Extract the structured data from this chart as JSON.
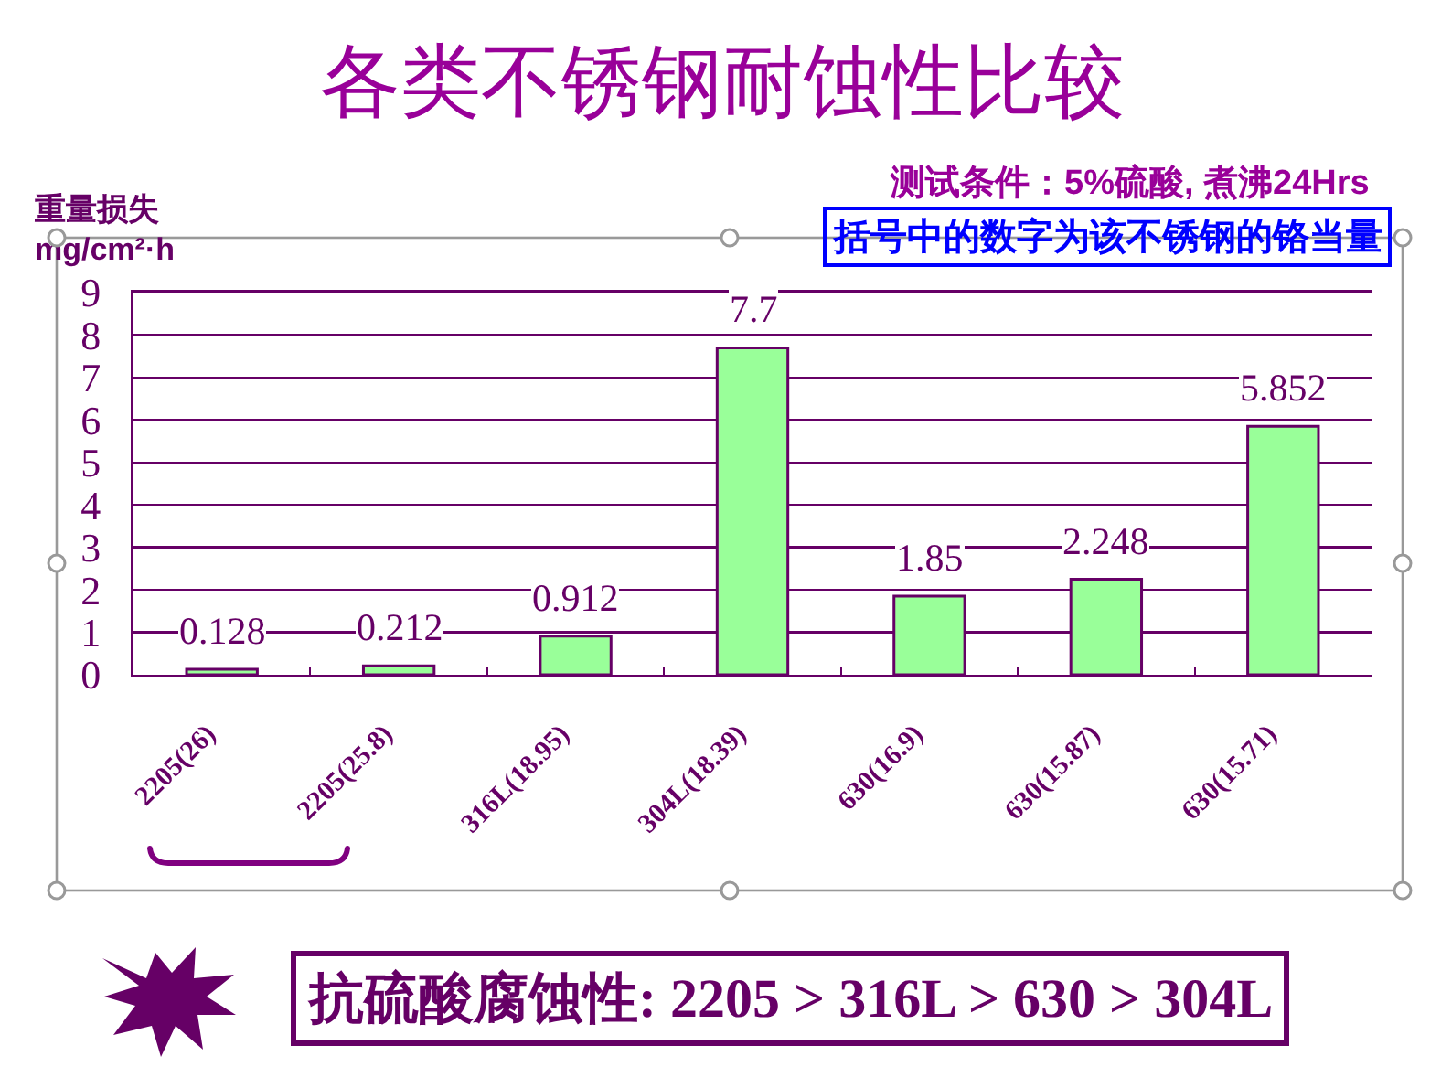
{
  "chart_data": {
    "type": "bar",
    "title": "各类不锈钢耐蚀性比较",
    "ylabel": "重量损失\nmg/cm²·h",
    "categories": [
      "2205(26)",
      "2205(25.8)",
      "316L(18.95)",
      "304L(18.39)",
      "630(16.9)",
      "630(15.87)",
      "630(15.71)"
    ],
    "values": [
      0.128,
      0.212,
      0.912,
      7.7,
      1.85,
      2.248,
      5.852
    ],
    "color": "#99ff99",
    "ylim": [
      0,
      9
    ],
    "yticks": [
      0,
      1,
      2,
      3,
      4,
      5,
      6,
      7,
      8,
      9
    ],
    "grid": "y",
    "data_labels": true,
    "annotations": [
      "测试条件：5%硫酸, 煮沸24Hrs",
      "括号中的数字为该不锈钢的铬当量",
      "抗硫酸腐蚀性: 2205 > 316L > 630 > 304L"
    ]
  }
}
